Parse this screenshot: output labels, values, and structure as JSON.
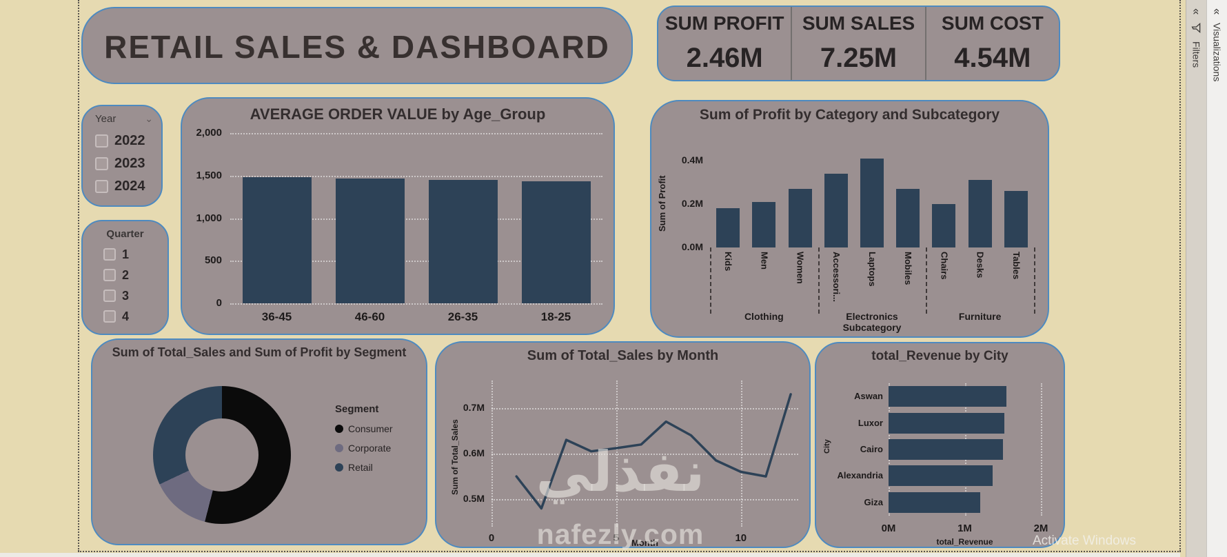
{
  "colors": {
    "page_bg": "#e6dab1",
    "card_bg": "#9b9091",
    "card_border": "#4d8ac0",
    "bar": "#2d4257"
  },
  "title_card": {
    "text": "RETAIL SALES & DASHBOARD"
  },
  "kpis": [
    {
      "label": "SUM PROFIT",
      "value": "2.46M"
    },
    {
      "label": "SUM SALES",
      "value": "7.25M"
    },
    {
      "label": "SUM COST",
      "value": "4.54M"
    }
  ],
  "slicers": {
    "year": {
      "header": "Year",
      "options": [
        "2022",
        "2023",
        "2024"
      ]
    },
    "quarter": {
      "header": "Quarter",
      "options": [
        "1",
        "2",
        "3",
        "4"
      ]
    }
  },
  "chart_data": [
    {
      "id": "avg_order_value",
      "type": "bar",
      "title": "AVERAGE ORDER VALUE by Age_Group",
      "categories": [
        "36-45",
        "46-60",
        "26-35",
        "18-25"
      ],
      "values": [
        1480,
        1465,
        1450,
        1430
      ],
      "ylim": [
        0,
        2000
      ],
      "yticks": [
        {
          "label": "2,000",
          "value": 2000
        },
        {
          "label": "1,500",
          "value": 1500
        },
        {
          "label": "1,000",
          "value": 1000
        },
        {
          "label": "500",
          "value": 500
        },
        {
          "label": "0",
          "value": 0
        }
      ],
      "grid": true,
      "legend": "none",
      "bar_color": "#2d4257"
    },
    {
      "id": "profit_by_subcategory",
      "type": "bar",
      "title": "Sum of Profit by Category and Subcategory",
      "ylabel": "Sum of Profit",
      "xlabel": "Subcategory",
      "groups": [
        {
          "category": "Clothing",
          "items": [
            "Kids",
            "Men",
            "Women"
          ],
          "values": [
            0.18,
            0.21,
            0.27
          ]
        },
        {
          "category": "Electronics",
          "items": [
            "Accessori...",
            "Laptops",
            "Mobiles"
          ],
          "values": [
            0.34,
            0.41,
            0.27
          ]
        },
        {
          "category": "Furniture",
          "items": [
            "Chairs",
            "Desks",
            "Tables"
          ],
          "values": [
            0.2,
            0.31,
            0.26
          ]
        }
      ],
      "ylim": [
        0,
        0.45
      ],
      "yticks": [
        {
          "label": "0.4M",
          "value": 0.4
        },
        {
          "label": "0.2M",
          "value": 0.2
        },
        {
          "label": "0.0M",
          "value": 0.0
        }
      ],
      "legend": "none",
      "bar_color": "#2d4257"
    },
    {
      "id": "sales_by_segment",
      "type": "pie",
      "title": "Sum of Total_Sales and Sum of Profit by Segment",
      "legend_title": "Segment",
      "legend_position": "right",
      "slices": [
        {
          "label": "Consumer",
          "share": 54,
          "color": "#0b0b0b"
        },
        {
          "label": "Corporate",
          "share": 14,
          "color": "#6e6b80"
        },
        {
          "label": "Retail",
          "share": 32,
          "color": "#2d4257"
        }
      ]
    },
    {
      "id": "sales_by_month",
      "type": "line",
      "title": "Sum of Total_Sales by Month",
      "ylabel": "Sum of Total_Sales",
      "xlabel": "Month",
      "x": [
        1,
        2,
        3,
        4,
        5,
        6,
        7,
        8,
        9,
        10,
        11,
        12
      ],
      "y": [
        0.55,
        0.48,
        0.63,
        0.605,
        0.612,
        0.62,
        0.67,
        0.64,
        0.585,
        0.56,
        0.55,
        0.73
      ],
      "xlim": [
        0,
        12.3
      ],
      "ylim": [
        0.44,
        0.76
      ],
      "yticks": [
        {
          "label": "0.7M",
          "value": 0.7
        },
        {
          "label": "0.6M",
          "value": 0.6
        },
        {
          "label": "0.5M",
          "value": 0.5
        }
      ],
      "xticks": [
        {
          "label": "0",
          "value": 0
        },
        {
          "label": "5",
          "value": 5
        },
        {
          "label": "10",
          "value": 10
        }
      ],
      "grid": true,
      "line_color": "#2d4257"
    },
    {
      "id": "revenue_by_city",
      "type": "bar",
      "orientation": "horizontal",
      "title": "total_Revenue by City",
      "ylabel": "City",
      "xlabel": "total_Revenue",
      "categories": [
        "Aswan",
        "Luxor",
        "Cairo",
        "Alexandria",
        "Giza"
      ],
      "values": [
        1.55,
        1.52,
        1.5,
        1.37,
        1.2
      ],
      "xlim": [
        0,
        2
      ],
      "xticks": [
        {
          "label": "0M",
          "value": 0
        },
        {
          "label": "1M",
          "value": 1
        },
        {
          "label": "2M",
          "value": 2
        }
      ],
      "grid": true,
      "bar_color": "#2d4257"
    }
  ],
  "sidebar": {
    "filters_label": "Filters",
    "visualizations_label": "Visualizations",
    "collapse_glyph": "«"
  },
  "watermark": {
    "arabic": "نفذلي",
    "domain": "nafezly.com"
  },
  "system": {
    "activate_text": "Activate Windows"
  }
}
